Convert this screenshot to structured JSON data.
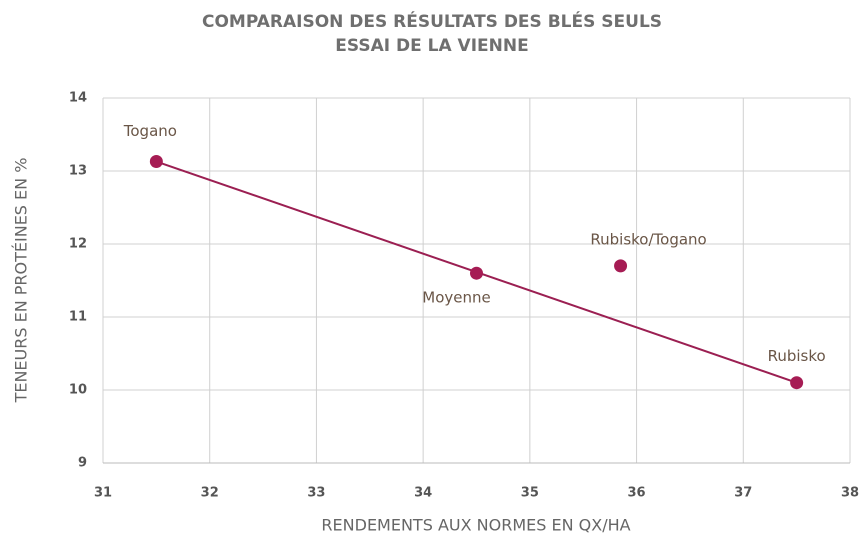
{
  "chart_data": {
    "type": "scatter",
    "title": "COMPARAISON DES RÉSULTATS DES BLÉS SEULS",
    "subtitle": "ESSAI DE LA VIENNE",
    "x_label": "RENDEMENTS AUX NORMES EN QX/HA",
    "y_label": "TENEURS EN PROTÉINES EN %",
    "labels": [
      "Togano",
      "Moyenne",
      "Rubisko/Togano",
      "Rubisko"
    ],
    "x": [
      31.5,
      34.5,
      35.85,
      37.5
    ],
    "values": [
      13.13,
      11.6,
      11.7,
      10.1
    ],
    "color": "#a61c54",
    "trendline": {
      "x": [
        31.5,
        37.5
      ],
      "values": [
        13.13,
        10.1
      ],
      "color": "#9b1f52"
    },
    "xlim": [
      31,
      38
    ],
    "xticks": [
      31,
      32,
      33,
      34,
      35,
      36,
      37,
      38
    ],
    "ylim": [
      9,
      14
    ],
    "yticks": [
      9,
      10,
      11,
      12,
      13,
      14
    ],
    "grid": true
  }
}
